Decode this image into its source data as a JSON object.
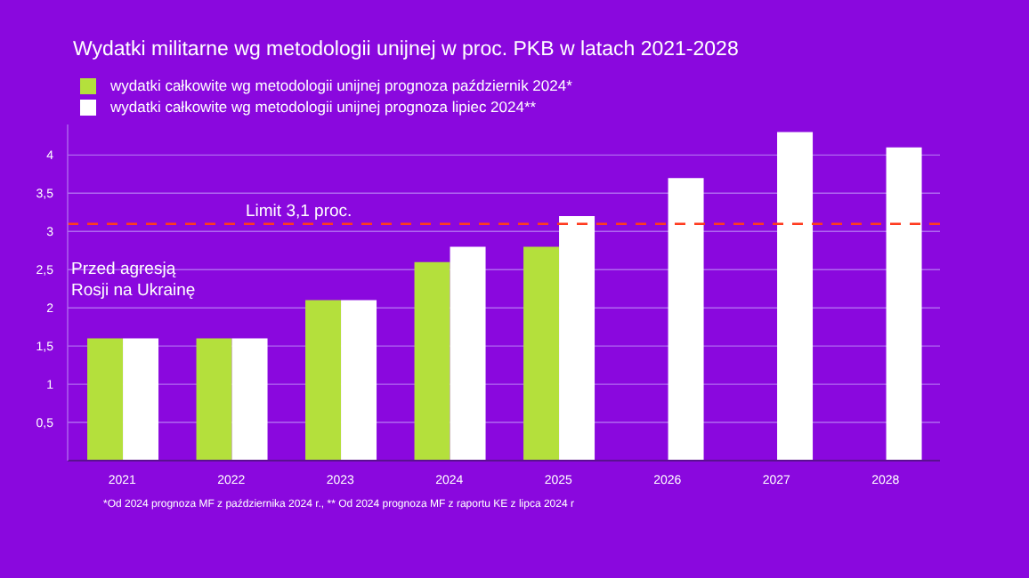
{
  "chart_data": {
    "type": "bar",
    "title": "Wydatki militarne wg metodologii unijnej w proc. PKB w latach 2021-2028",
    "categories": [
      "2021",
      "2022",
      "2023",
      "2024",
      "2025",
      "2026",
      "2027",
      "2028"
    ],
    "series": [
      {
        "name": "wydatki całkowite wg metodologii unijnej prognoza październik 2024*",
        "color": "#b4e03c",
        "values": [
          1.6,
          1.6,
          2.1,
          2.6,
          2.8,
          null,
          null,
          null
        ]
      },
      {
        "name": "wydatki całkowite wg metodologii unijnej prognoza lipiec 2024**",
        "color": "#ffffff",
        "values": [
          1.6,
          1.6,
          2.1,
          2.8,
          3.2,
          3.7,
          4.3,
          4.1
        ]
      }
    ],
    "ylim": [
      0,
      4.4
    ],
    "yticks": [
      {
        "value": 0,
        "label": null
      },
      {
        "value": 0.5,
        "label": "0,5"
      },
      {
        "value": 1,
        "label": "1"
      },
      {
        "value": 1.5,
        "label": "1,5"
      },
      {
        "value": 2,
        "label": "2"
      },
      {
        "value": 2.5,
        "label": "2,5"
      },
      {
        "value": 3,
        "label": "3"
      },
      {
        "value": 3.5,
        "label": "3,5"
      },
      {
        "value": 4,
        "label": "4"
      }
    ],
    "ref_lines": [
      {
        "axis": "y",
        "value": 3.1,
        "label": "Limit 3,1 proc.",
        "color": "#ff3b1f",
        "line_style": "dashed"
      }
    ],
    "annotations": [
      "Przed agresją Rosji na Ukrainę",
      "*Od 2024 prognoza MF z października 2024 r.,  ** Od 2024 prognoza MF z raportu KE z lipca 2024 r"
    ],
    "grid": "y",
    "legend": "top left"
  }
}
